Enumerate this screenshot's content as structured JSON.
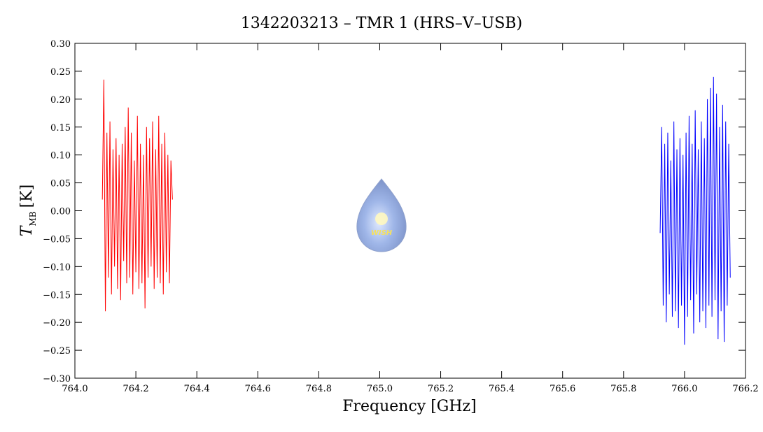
{
  "chart_data": {
    "type": "line",
    "title": "1342203213 – TMR 1 (HRS–V–USB)",
    "x_label": "Frequency [GHz]",
    "y_label": {
      "symbol": "T",
      "sub": "MB",
      "unit": "[K]"
    },
    "logo_text": "WISH",
    "grid": false,
    "xlim": [
      764.0,
      766.2
    ],
    "xticks": [
      {
        "value": 764.0,
        "label": "764.0"
      },
      {
        "value": 764.2,
        "label": "764.2"
      },
      {
        "value": 764.4,
        "label": "764.4"
      },
      {
        "value": 764.6,
        "label": "764.6"
      },
      {
        "value": 764.8,
        "label": "764.8"
      },
      {
        "value": 765.0,
        "label": "765.0"
      },
      {
        "value": 765.2,
        "label": "765.2"
      },
      {
        "value": 765.4,
        "label": "765.4"
      },
      {
        "value": 765.6,
        "label": "765.6"
      },
      {
        "value": 765.8,
        "label": "765.8"
      },
      {
        "value": 766.0,
        "label": "766.0"
      },
      {
        "value": 766.2,
        "label": "766.2"
      }
    ],
    "ylim": [
      -0.3,
      0.3
    ],
    "yticks": [
      {
        "value": -0.3,
        "label": "−0.30"
      },
      {
        "value": -0.25,
        "label": "−0.25"
      },
      {
        "value": -0.2,
        "label": "−0.20"
      },
      {
        "value": -0.15,
        "label": "−0.15"
      },
      {
        "value": -0.1,
        "label": "−0.10"
      },
      {
        "value": -0.05,
        "label": "−0.05"
      },
      {
        "value": 0,
        "label": "0.00"
      },
      {
        "value": 0.05,
        "label": "0.05"
      },
      {
        "value": 0.1,
        "label": "0.10"
      },
      {
        "value": 0.15,
        "label": "0.15"
      },
      {
        "value": 0.2,
        "label": "0.20"
      },
      {
        "value": 0.25,
        "label": "0.25"
      },
      {
        "value": 0.3,
        "label": "0.30"
      }
    ],
    "series": [
      {
        "color": "#ff0000",
        "x": [
          764.09,
          764.095,
          764.1,
          764.105,
          764.11,
          764.115,
          764.12,
          764.125,
          764.13,
          764.135,
          764.14,
          764.145,
          764.15,
          764.155,
          764.16,
          764.165,
          764.17,
          764.175,
          764.18,
          764.185,
          764.19,
          764.195,
          764.2,
          764.205,
          764.21,
          764.215,
          764.22,
          764.225,
          764.23,
          764.235,
          764.24,
          764.245,
          764.25,
          764.255,
          764.26,
          764.265,
          764.27,
          764.275,
          764.28,
          764.285,
          764.29,
          764.295,
          764.3,
          764.305,
          764.31,
          764.315,
          764.32
        ],
        "values": [
          0.02,
          0.235,
          -0.18,
          0.14,
          -0.12,
          0.16,
          -0.15,
          0.11,
          -0.1,
          0.13,
          -0.14,
          0.1,
          -0.16,
          0.12,
          -0.09,
          0.15,
          -0.13,
          0.185,
          -0.12,
          0.14,
          -0.15,
          0.09,
          -0.11,
          0.17,
          -0.14,
          0.12,
          -0.13,
          0.1,
          -0.175,
          0.15,
          -0.12,
          0.13,
          -0.1,
          0.16,
          -0.14,
          0.11,
          -0.12,
          0.17,
          -0.13,
          0.12,
          -0.15,
          0.14,
          -0.11,
          0.1,
          -0.13,
          0.09,
          0.02
        ]
      },
      {
        "color": "#0000ff",
        "x": [
          765.92,
          765.925,
          765.93,
          765.935,
          765.94,
          765.945,
          765.95,
          765.955,
          765.96,
          765.965,
          765.97,
          765.975,
          765.98,
          765.985,
          765.99,
          765.995,
          766.0,
          766.005,
          766.01,
          766.015,
          766.02,
          766.025,
          766.03,
          766.035,
          766.04,
          766.045,
          766.05,
          766.055,
          766.06,
          766.065,
          766.07,
          766.075,
          766.08,
          766.085,
          766.09,
          766.095,
          766.1,
          766.105,
          766.11,
          766.115,
          766.12,
          766.125,
          766.13,
          766.135,
          766.14,
          766.145,
          766.15
        ],
        "values": [
          -0.04,
          0.15,
          -0.17,
          0.12,
          -0.2,
          0.14,
          -0.15,
          0.09,
          -0.19,
          0.16,
          -0.18,
          0.11,
          -0.21,
          0.13,
          -0.17,
          0.1,
          -0.24,
          0.14,
          -0.19,
          0.17,
          -0.16,
          0.12,
          -0.22,
          0.18,
          -0.15,
          0.11,
          -0.2,
          0.16,
          -0.18,
          0.13,
          -0.21,
          0.2,
          -0.17,
          0.22,
          -0.19,
          0.24,
          -0.16,
          0.21,
          -0.23,
          0.15,
          -0.18,
          0.19,
          -0.235,
          0.16,
          -0.17,
          0.12,
          -0.12
        ]
      }
    ]
  }
}
